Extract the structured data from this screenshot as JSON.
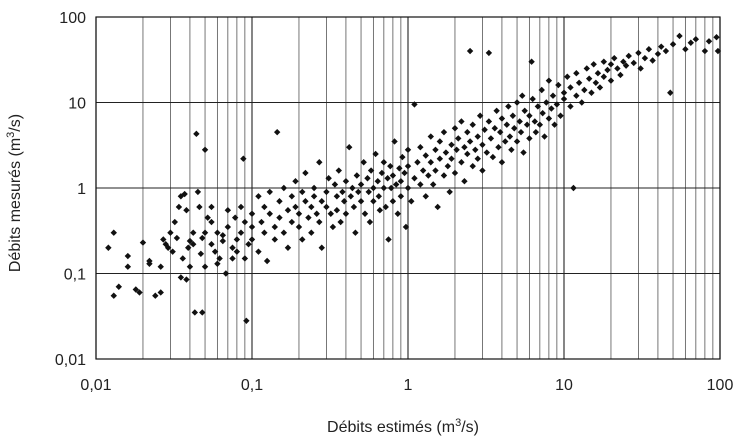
{
  "chart_data": {
    "type": "scatter",
    "title": "",
    "xlabel": "Débits estimés (m3/s)",
    "ylabel": "Débits mesurés (m3/s)",
    "x_scale": "log",
    "y_scale": "log",
    "xlim": [
      0.01,
      100
    ],
    "ylim": [
      0.01,
      100
    ],
    "x_ticks": [
      0.01,
      0.1,
      1,
      10,
      100
    ],
    "x_tick_labels": [
      "0,01",
      "0,1",
      "1",
      "10",
      "100"
    ],
    "y_ticks": [
      0.01,
      0.1,
      1,
      10,
      100
    ],
    "y_tick_labels": [
      "0,01",
      "0,1",
      "1",
      "10",
      "100"
    ],
    "grid": {
      "x_major": true,
      "x_minor": true,
      "y_major": true,
      "y_minor": false
    },
    "legend": "none",
    "marker": "diamond",
    "marker_color": "#111111",
    "series": [
      {
        "points": [
          [
            0.012,
            0.2
          ],
          [
            0.013,
            0.3
          ],
          [
            0.013,
            0.055
          ],
          [
            0.014,
            0.07
          ],
          [
            0.016,
            0.16
          ],
          [
            0.016,
            0.12
          ],
          [
            0.018,
            0.065
          ],
          [
            0.019,
            0.06
          ],
          [
            0.02,
            0.23
          ],
          [
            0.022,
            0.14
          ],
          [
            0.022,
            0.13
          ],
          [
            0.024,
            0.055
          ],
          [
            0.026,
            0.06
          ],
          [
            0.026,
            0.12
          ],
          [
            0.027,
            0.25
          ],
          [
            0.028,
            0.22
          ],
          [
            0.029,
            0.2
          ],
          [
            0.03,
            0.3
          ],
          [
            0.031,
            0.18
          ],
          [
            0.032,
            0.4
          ],
          [
            0.033,
            0.26
          ],
          [
            0.034,
            0.6
          ],
          [
            0.035,
            0.8
          ],
          [
            0.035,
            0.09
          ],
          [
            0.036,
            0.15
          ],
          [
            0.037,
            0.85
          ],
          [
            0.038,
            0.55
          ],
          [
            0.038,
            0.085
          ],
          [
            0.039,
            0.2
          ],
          [
            0.04,
            0.24
          ],
          [
            0.04,
            0.12
          ],
          [
            0.042,
            0.3
          ],
          [
            0.042,
            0.22
          ],
          [
            0.043,
            0.035
          ],
          [
            0.044,
            4.3
          ],
          [
            0.045,
            0.9
          ],
          [
            0.046,
            0.6
          ],
          [
            0.047,
            0.17
          ],
          [
            0.048,
            0.035
          ],
          [
            0.048,
            0.26
          ],
          [
            0.05,
            2.8
          ],
          [
            0.05,
            0.3
          ],
          [
            0.05,
            0.12
          ],
          [
            0.052,
            0.45
          ],
          [
            0.055,
            0.22
          ],
          [
            0.055,
            0.4
          ],
          [
            0.055,
            0.6
          ],
          [
            0.058,
            0.18
          ],
          [
            0.06,
            0.13
          ],
          [
            0.06,
            0.3
          ],
          [
            0.062,
            0.15
          ],
          [
            0.065,
            0.24
          ],
          [
            0.065,
            0.28
          ],
          [
            0.068,
            0.1
          ],
          [
            0.07,
            0.55
          ],
          [
            0.07,
            0.35
          ],
          [
            0.075,
            0.2
          ],
          [
            0.075,
            0.15
          ],
          [
            0.078,
            0.45
          ],
          [
            0.08,
            0.25
          ],
          [
            0.08,
            0.18
          ],
          [
            0.085,
            0.3
          ],
          [
            0.085,
            0.6
          ],
          [
            0.088,
            2.2
          ],
          [
            0.09,
            0.4
          ],
          [
            0.09,
            0.15
          ],
          [
            0.092,
            0.028
          ],
          [
            0.095,
            0.22
          ],
          [
            0.1,
            0.35
          ],
          [
            0.1,
            0.5
          ],
          [
            0.1,
            0.25
          ],
          [
            0.11,
            0.8
          ],
          [
            0.11,
            0.18
          ],
          [
            0.115,
            0.4
          ],
          [
            0.12,
            0.6
          ],
          [
            0.12,
            0.3
          ],
          [
            0.125,
            0.14
          ],
          [
            0.13,
            0.5
          ],
          [
            0.13,
            0.9
          ],
          [
            0.14,
            0.35
          ],
          [
            0.14,
            0.25
          ],
          [
            0.145,
            4.5
          ],
          [
            0.15,
            0.7
          ],
          [
            0.15,
            0.45
          ],
          [
            0.16,
            0.3
          ],
          [
            0.16,
            1.0
          ],
          [
            0.17,
            0.55
          ],
          [
            0.17,
            0.2
          ],
          [
            0.18,
            0.8
          ],
          [
            0.18,
            0.4
          ],
          [
            0.19,
            1.2
          ],
          [
            0.19,
            0.6
          ],
          [
            0.2,
            0.35
          ],
          [
            0.2,
            0.5
          ],
          [
            0.21,
            0.9
          ],
          [
            0.21,
            0.25
          ],
          [
            0.22,
            0.7
          ],
          [
            0.22,
            1.5
          ],
          [
            0.23,
            0.45
          ],
          [
            0.24,
            0.6
          ],
          [
            0.24,
            0.3
          ],
          [
            0.25,
            1.0
          ],
          [
            0.25,
            0.8
          ],
          [
            0.26,
            0.5
          ],
          [
            0.27,
            0.4
          ],
          [
            0.27,
            2.0
          ],
          [
            0.28,
            0.7
          ],
          [
            0.28,
            0.2
          ],
          [
            0.3,
            0.9
          ],
          [
            0.3,
            0.6
          ],
          [
            0.31,
            1.3
          ],
          [
            0.32,
            0.5
          ],
          [
            0.33,
            0.35
          ],
          [
            0.34,
            1.1
          ],
          [
            0.35,
            0.8
          ],
          [
            0.35,
            0.55
          ],
          [
            0.36,
            1.6
          ],
          [
            0.37,
            0.4
          ],
          [
            0.38,
            0.9
          ],
          [
            0.39,
            0.7
          ],
          [
            0.4,
            1.2
          ],
          [
            0.4,
            0.5
          ],
          [
            0.42,
            3.0
          ],
          [
            0.43,
            0.8
          ],
          [
            0.44,
            1.0
          ],
          [
            0.45,
            0.6
          ],
          [
            0.46,
            0.3
          ],
          [
            0.47,
            1.4
          ],
          [
            0.48,
            0.9
          ],
          [
            0.5,
            0.7
          ],
          [
            0.5,
            1.1
          ],
          [
            0.52,
            2.0
          ],
          [
            0.53,
            0.5
          ],
          [
            0.55,
            1.3
          ],
          [
            0.56,
            0.9
          ],
          [
            0.57,
            0.4
          ],
          [
            0.58,
            1.6
          ],
          [
            0.6,
            1.0
          ],
          [
            0.6,
            0.7
          ],
          [
            0.62,
            2.5
          ],
          [
            0.64,
            1.2
          ],
          [
            0.65,
            0.8
          ],
          [
            0.66,
            0.55
          ],
          [
            0.68,
            1.5
          ],
          [
            0.7,
            1.0
          ],
          [
            0.7,
            2.0
          ],
          [
            0.72,
            0.6
          ],
          [
            0.74,
            1.3
          ],
          [
            0.75,
            0.25
          ],
          [
            0.77,
            1.8
          ],
          [
            0.78,
            1.0
          ],
          [
            0.8,
            0.7
          ],
          [
            0.8,
            1.4
          ],
          [
            0.82,
            3.5
          ],
          [
            0.84,
            1.1
          ],
          [
            0.86,
            0.5
          ],
          [
            0.88,
            1.7
          ],
          [
            0.9,
            1.2
          ],
          [
            0.9,
            0.8
          ],
          [
            0.92,
            2.3
          ],
          [
            0.95,
            1.5
          ],
          [
            0.97,
            0.35
          ],
          [
            1.0,
            1.0
          ],
          [
            1.0,
            1.8
          ],
          [
            1.0,
            2.8
          ],
          [
            1.05,
            0.7
          ],
          [
            1.1,
            1.3
          ],
          [
            1.1,
            9.5
          ],
          [
            1.15,
            2.0
          ],
          [
            1.2,
            1.1
          ],
          [
            1.2,
            3.0
          ],
          [
            1.25,
            1.6
          ],
          [
            1.3,
            0.8
          ],
          [
            1.3,
            2.4
          ],
          [
            1.35,
            1.4
          ],
          [
            1.4,
            4.0
          ],
          [
            1.4,
            2.0
          ],
          [
            1.45,
            1.1
          ],
          [
            1.5,
            2.8
          ],
          [
            1.5,
            1.6
          ],
          [
            1.55,
            0.6
          ],
          [
            1.6,
            3.5
          ],
          [
            1.6,
            2.2
          ],
          [
            1.7,
            1.4
          ],
          [
            1.7,
            4.5
          ],
          [
            1.75,
            2.6
          ],
          [
            1.8,
            1.8
          ],
          [
            1.85,
            0.9
          ],
          [
            1.9,
            3.2
          ],
          [
            1.9,
            2.2
          ],
          [
            2.0,
            5.0
          ],
          [
            2.0,
            1.5
          ],
          [
            2.05,
            2.8
          ],
          [
            2.1,
            3.8
          ],
          [
            2.2,
            2.0
          ],
          [
            2.2,
            6.0
          ],
          [
            2.3,
            3.0
          ],
          [
            2.3,
            1.2
          ],
          [
            2.4,
            4.5
          ],
          [
            2.4,
            2.5
          ],
          [
            2.5,
            40
          ],
          [
            2.5,
            3.5
          ],
          [
            2.6,
            1.8
          ],
          [
            2.6,
            5.5
          ],
          [
            2.7,
            2.8
          ],
          [
            2.8,
            4.0
          ],
          [
            2.8,
            2.2
          ],
          [
            2.9,
            7.0
          ],
          [
            3.0,
            3.2
          ],
          [
            3.0,
            1.6
          ],
          [
            3.1,
            4.8
          ],
          [
            3.2,
            2.6
          ],
          [
            3.3,
            38
          ],
          [
            3.3,
            6.0
          ],
          [
            3.4,
            3.8
          ],
          [
            3.5,
            2.3
          ],
          [
            3.6,
            5.0
          ],
          [
            3.7,
            8.0
          ],
          [
            3.8,
            3.0
          ],
          [
            3.9,
            4.5
          ],
          [
            4.0,
            6.5
          ],
          [
            4.0,
            2.0
          ],
          [
            4.2,
            3.5
          ],
          [
            4.3,
            5.5
          ],
          [
            4.4,
            9.0
          ],
          [
            4.5,
            4.0
          ],
          [
            4.6,
            2.8
          ],
          [
            4.7,
            7.0
          ],
          [
            4.8,
            5.0
          ],
          [
            5.0,
            10
          ],
          [
            5.0,
            3.5
          ],
          [
            5.2,
            6.0
          ],
          [
            5.3,
            4.5
          ],
          [
            5.4,
            12
          ],
          [
            5.5,
            2.6
          ],
          [
            5.6,
            8.0
          ],
          [
            5.8,
            5.5
          ],
          [
            6.0,
            7.0
          ],
          [
            6.0,
            3.8
          ],
          [
            6.2,
            30
          ],
          [
            6.3,
            11
          ],
          [
            6.5,
            6.0
          ],
          [
            6.6,
            4.5
          ],
          [
            6.8,
            9.0
          ],
          [
            7.0,
            5.5
          ],
          [
            7.2,
            14
          ],
          [
            7.3,
            7.5
          ],
          [
            7.5,
            4.0
          ],
          [
            7.7,
            10
          ],
          [
            8.0,
            6.5
          ],
          [
            8.0,
            18
          ],
          [
            8.3,
            8.5
          ],
          [
            8.5,
            12
          ],
          [
            8.7,
            5.5
          ],
          [
            9.0,
            9.5
          ],
          [
            9.2,
            16
          ],
          [
            9.5,
            7.0
          ],
          [
            10,
            11
          ],
          [
            10,
            13
          ],
          [
            10.5,
            20
          ],
          [
            11,
            9.0
          ],
          [
            11,
            15
          ],
          [
            11.5,
            1.0
          ],
          [
            12,
            12
          ],
          [
            12,
            22
          ],
          [
            12.5,
            17
          ],
          [
            13,
            10
          ],
          [
            13.5,
            14
          ],
          [
            14,
            25
          ],
          [
            14.5,
            19
          ],
          [
            15,
            13
          ],
          [
            15.5,
            28
          ],
          [
            16,
            17
          ],
          [
            16.5,
            22
          ],
          [
            17,
            15
          ],
          [
            18,
            30
          ],
          [
            18,
            20
          ],
          [
            19,
            24
          ],
          [
            20,
            18
          ],
          [
            20,
            28
          ],
          [
            21,
            33
          ],
          [
            22,
            25
          ],
          [
            23,
            21
          ],
          [
            24,
            30
          ],
          [
            25,
            27
          ],
          [
            26,
            35
          ],
          [
            28,
            29
          ],
          [
            30,
            38
          ],
          [
            31,
            25
          ],
          [
            33,
            33
          ],
          [
            35,
            42
          ],
          [
            37,
            31
          ],
          [
            40,
            37
          ],
          [
            42,
            45
          ],
          [
            45,
            40
          ],
          [
            48,
            13
          ],
          [
            50,
            48
          ],
          [
            55,
            60
          ],
          [
            60,
            42
          ],
          [
            65,
            50
          ],
          [
            70,
            55
          ],
          [
            80,
            40
          ],
          [
            85,
            52
          ],
          [
            95,
            58
          ],
          [
            97,
            40
          ]
        ]
      }
    ]
  }
}
